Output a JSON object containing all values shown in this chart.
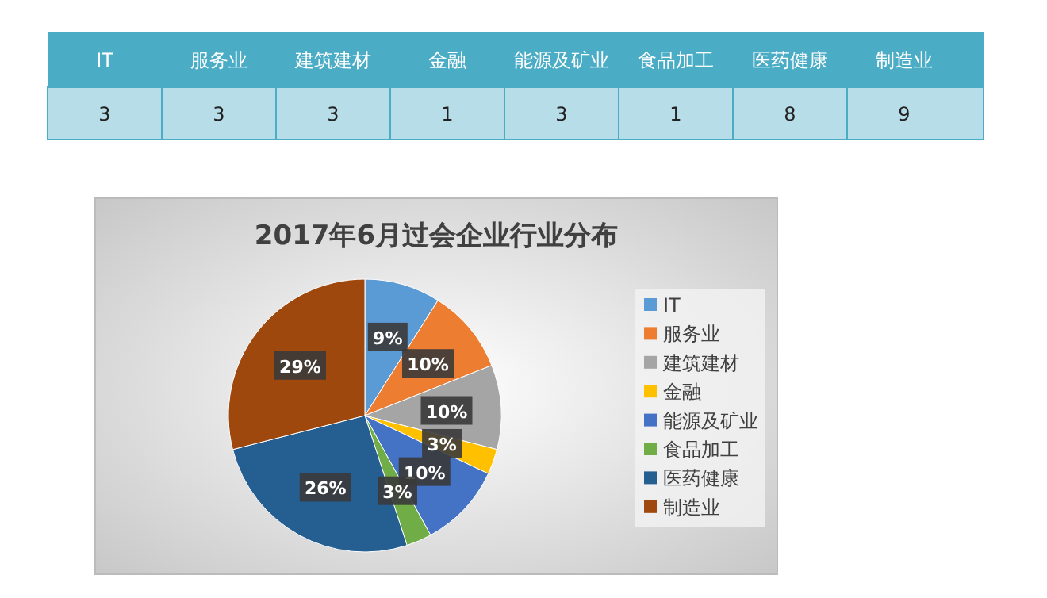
{
  "chart_data": [
    {
      "type": "other",
      "categories": [
        "IT",
        "服务业",
        "建筑建材",
        "金融",
        "能源及矿业",
        "食品加工",
        "医药健康",
        "制造业"
      ],
      "values": [
        3,
        3,
        3,
        1,
        3,
        1,
        8,
        9
      ],
      "data_labels": true
    },
    {
      "type": "pie",
      "title": "2017年6月过会企业行业分布",
      "categories": [
        "IT",
        "服务业",
        "建筑建材",
        "金融",
        "能源及矿业",
        "食品加工",
        "医药健康",
        "制造业"
      ],
      "values": [
        9,
        10,
        10,
        3,
        10,
        3,
        26,
        29
      ],
      "colors": [
        "#5b9bd5",
        "#ed7d31",
        "#a5a5a5",
        "#ffc000",
        "#4472c4",
        "#70ad47",
        "#255e91",
        "#9e480e"
      ],
      "value_labels": [
        "9%",
        "10%",
        "10%",
        "3%",
        "10%",
        "3%",
        "26%",
        "29%"
      ],
      "legend": "right"
    }
  ]
}
